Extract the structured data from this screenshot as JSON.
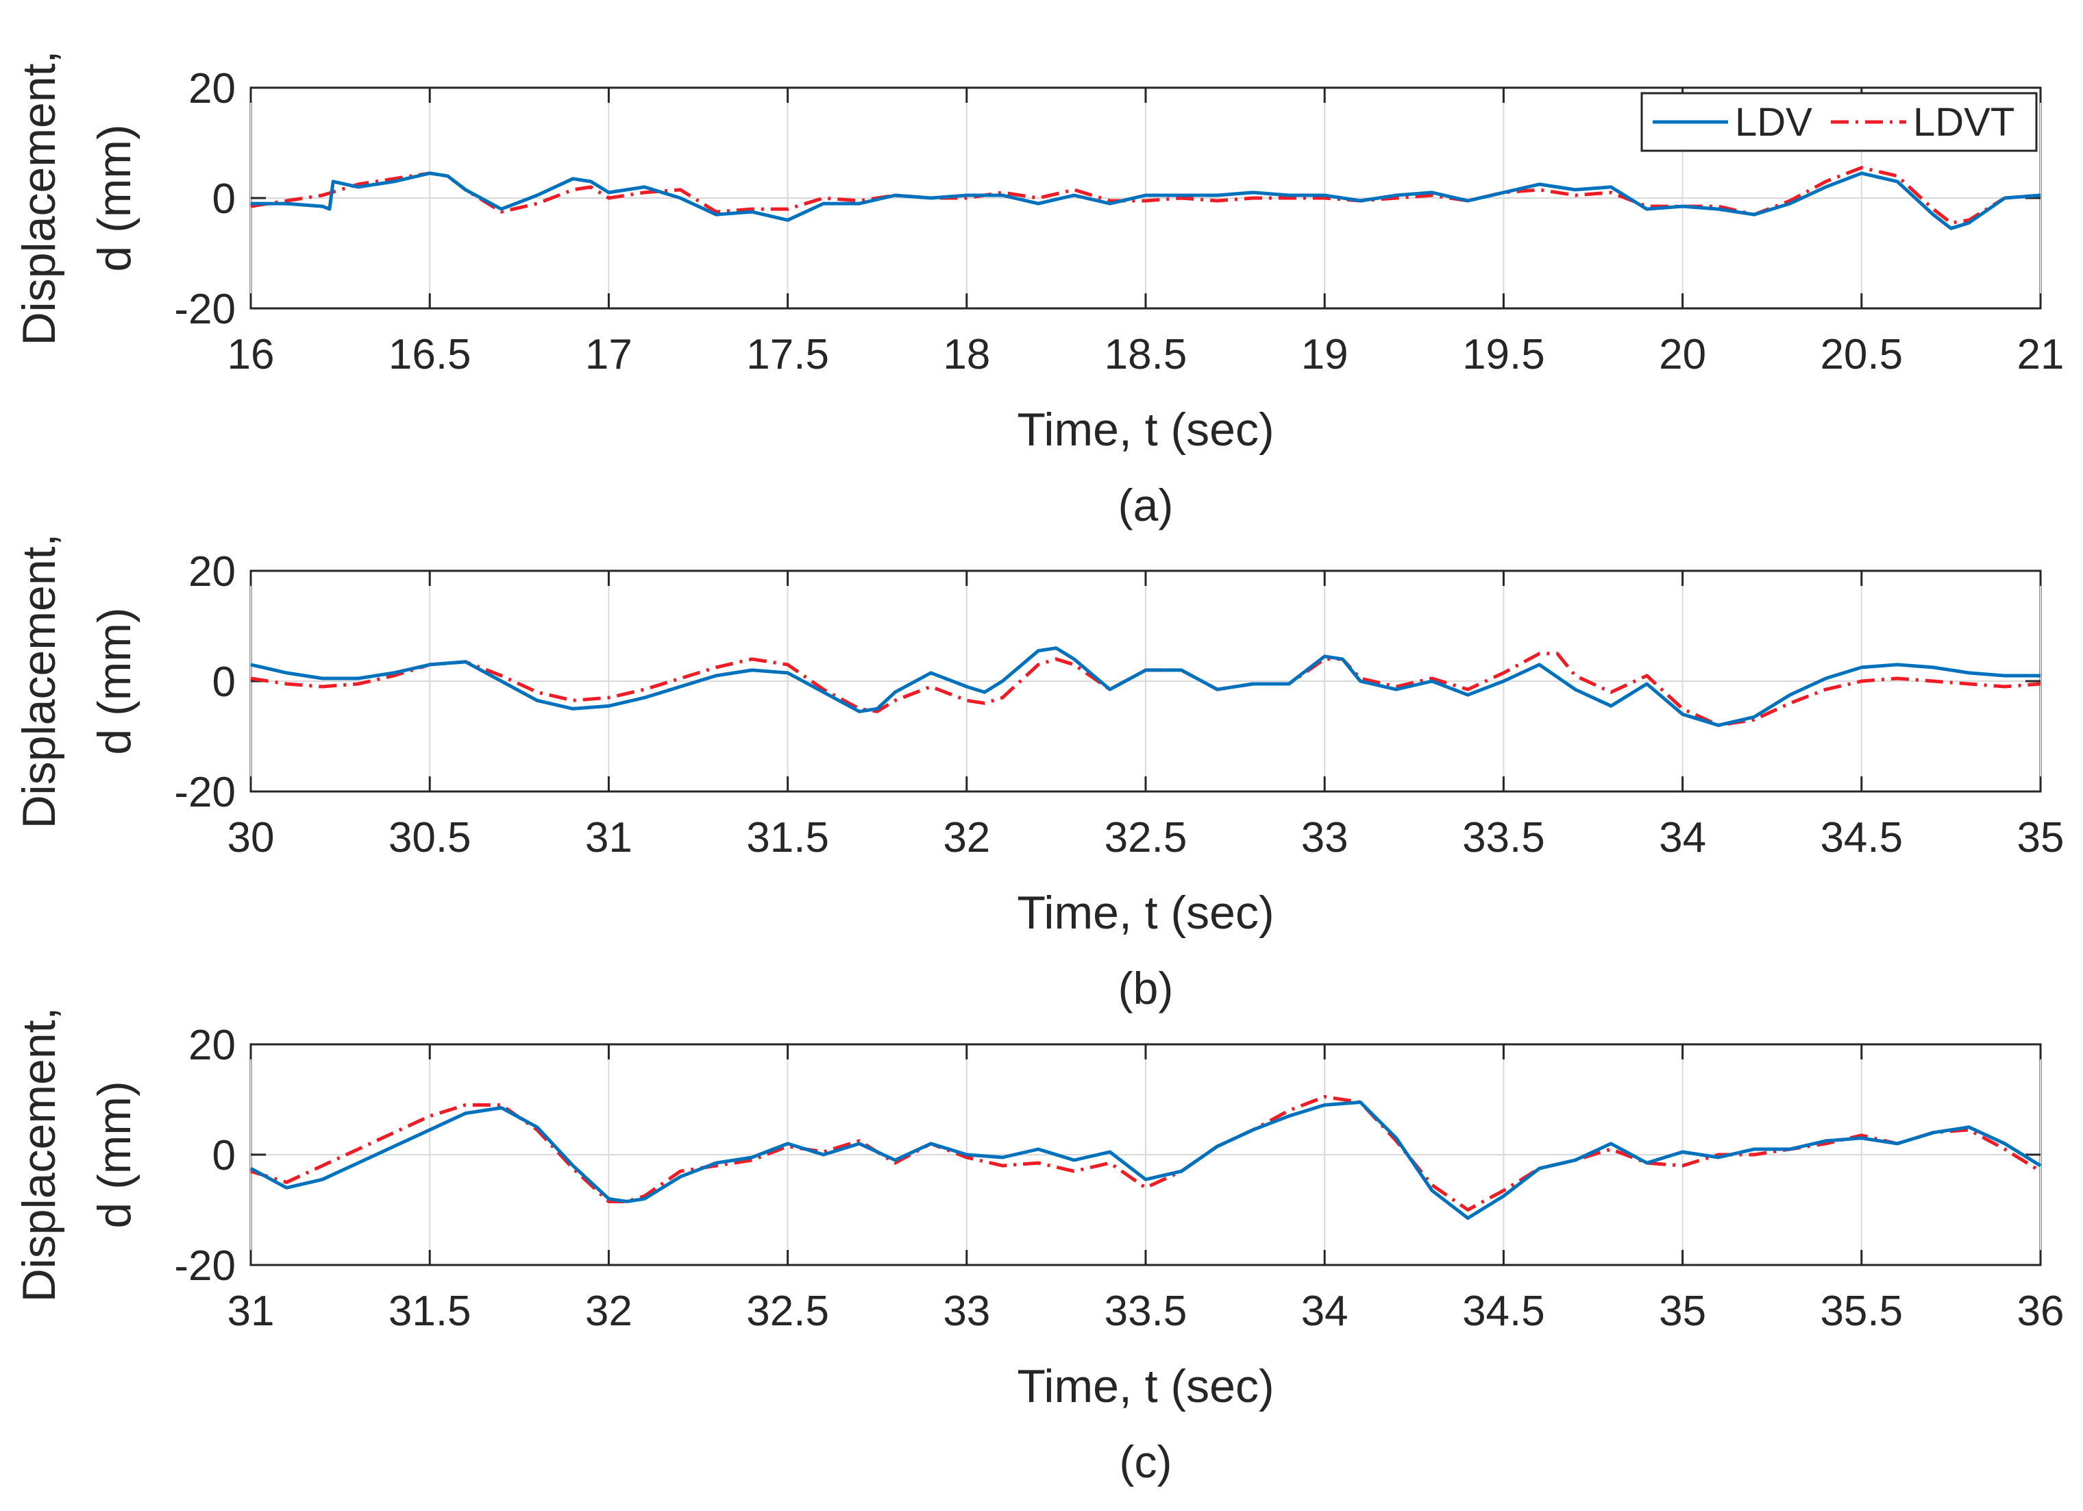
{
  "colors": {
    "ldv": "#0072BD",
    "ldvt": "#EE1C25",
    "axis": "#262626",
    "grid": "#D9D9D9"
  },
  "legend": {
    "ldv_label": "LDV",
    "ldvt_label": "LDVT",
    "placement": "top-right",
    "panel": 0
  },
  "chart_data": [
    {
      "type": "line",
      "caption": "(a)",
      "xlabel": "Time, t (sec)",
      "ylabel_line1": "Displacement,",
      "ylabel_line2": "d (mm)",
      "xlim": [
        16,
        21
      ],
      "ylim": [
        -20,
        20
      ],
      "xticks": [
        "16",
        "16.5",
        "17",
        "17.5",
        "18",
        "18.5",
        "19",
        "19.5",
        "20",
        "20.5",
        "21"
      ],
      "yticks": [
        "-20",
        "0",
        "20"
      ],
      "grid": true,
      "series": [
        {
          "name": "LDV",
          "x": [
            16,
            16.1,
            16.2,
            16.22,
            16.23,
            16.3,
            16.4,
            16.5,
            16.55,
            16.6,
            16.7,
            16.8,
            16.9,
            16.95,
            17.0,
            17.1,
            17.2,
            17.3,
            17.4,
            17.5,
            17.6,
            17.7,
            17.8,
            17.9,
            18.0,
            18.1,
            18.2,
            18.3,
            18.4,
            18.5,
            18.6,
            18.7,
            18.8,
            18.9,
            19.0,
            19.1,
            19.2,
            19.3,
            19.4,
            19.5,
            19.6,
            19.7,
            19.8,
            19.9,
            20.0,
            20.1,
            20.2,
            20.3,
            20.4,
            20.5,
            20.6,
            20.7,
            20.75,
            20.8,
            20.9,
            21.0
          ],
          "y": [
            -1,
            -1,
            -1.5,
            -2,
            3,
            2,
            3,
            4.5,
            4,
            1.5,
            -2,
            0.5,
            3.5,
            3,
            1,
            2,
            0,
            -3,
            -2.5,
            -4,
            -1,
            -1,
            0.5,
            0,
            0.5,
            0.5,
            -1,
            0.5,
            -1,
            0.5,
            0.5,
            0.5,
            1,
            0.5,
            0.5,
            -0.5,
            0.5,
            1,
            -0.5,
            1,
            2.5,
            1.5,
            2,
            -2,
            -1.5,
            -2,
            -3,
            -1,
            2,
            4.5,
            3,
            -3,
            -5.5,
            -4.5,
            0,
            0.5
          ]
        },
        {
          "name": "LDVT",
          "x": [
            16,
            16.1,
            16.2,
            16.3,
            16.4,
            16.5,
            16.55,
            16.6,
            16.7,
            16.8,
            16.9,
            16.95,
            17.0,
            17.1,
            17.2,
            17.3,
            17.4,
            17.5,
            17.6,
            17.7,
            17.8,
            17.9,
            18.0,
            18.1,
            18.2,
            18.3,
            18.4,
            18.5,
            18.6,
            18.7,
            18.8,
            18.9,
            19.0,
            19.1,
            19.2,
            19.3,
            19.4,
            19.5,
            19.6,
            19.7,
            19.8,
            19.9,
            20.0,
            20.1,
            20.2,
            20.3,
            20.4,
            20.5,
            20.6,
            20.7,
            20.75,
            20.8,
            20.9,
            21.0
          ],
          "y": [
            -1.5,
            -0.5,
            0.5,
            2.5,
            3.5,
            4.5,
            4,
            1.5,
            -2.5,
            -1,
            1.5,
            2,
            0,
            1,
            1.5,
            -2.5,
            -2,
            -2,
            0,
            -0.5,
            0.5,
            0,
            0,
            1,
            0,
            1.5,
            -0.5,
            -0.5,
            0,
            -0.5,
            0,
            0,
            0,
            -0.5,
            0,
            0.5,
            -0.5,
            1,
            1.5,
            0.5,
            1,
            -1.5,
            -1.5,
            -1.5,
            -3,
            -0.5,
            3,
            5.5,
            4,
            -2,
            -4.5,
            -4,
            0,
            0.5
          ]
        }
      ]
    },
    {
      "type": "line",
      "caption": "(b)",
      "xlabel": "Time, t (sec)",
      "ylabel_line1": "Displacement,",
      "ylabel_line2": "d (mm)",
      "xlim": [
        30,
        35
      ],
      "ylim": [
        -20,
        20
      ],
      "xticks": [
        "30",
        "30.5",
        "31",
        "31.5",
        "32",
        "32.5",
        "33",
        "33.5",
        "34",
        "34.5",
        "35"
      ],
      "yticks": [
        "-20",
        "0",
        "20"
      ],
      "grid": true,
      "series": [
        {
          "name": "LDV",
          "x": [
            30,
            30.1,
            30.2,
            30.3,
            30.4,
            30.5,
            30.6,
            30.7,
            30.8,
            30.9,
            31.0,
            31.1,
            31.2,
            31.3,
            31.4,
            31.5,
            31.6,
            31.7,
            31.75,
            31.8,
            31.9,
            32.0,
            32.05,
            32.1,
            32.2,
            32.25,
            32.3,
            32.4,
            32.5,
            32.6,
            32.7,
            32.8,
            32.9,
            33.0,
            33.05,
            33.1,
            33.2,
            33.3,
            33.4,
            33.5,
            33.6,
            33.7,
            33.8,
            33.9,
            34.0,
            34.1,
            34.2,
            34.3,
            34.4,
            34.5,
            34.6,
            34.7,
            34.8,
            34.9,
            35.0
          ],
          "y": [
            3,
            1.5,
            0.5,
            0.5,
            1.5,
            3,
            3.5,
            0,
            -3.5,
            -5,
            -4.5,
            -3,
            -1,
            1,
            2,
            1.5,
            -2,
            -5.5,
            -5,
            -2,
            1.5,
            -1,
            -2,
            0,
            5.5,
            6,
            4,
            -1.5,
            2,
            2,
            -1.5,
            -0.5,
            -0.5,
            4.5,
            4,
            0,
            -1.5,
            0,
            -2.5,
            0,
            3,
            -1.5,
            -4.5,
            -0.5,
            -6,
            -8,
            -6.5,
            -2.5,
            0.5,
            2.5,
            3,
            2.5,
            1.5,
            1,
            1
          ]
        },
        {
          "name": "LDVT",
          "x": [
            30,
            30.1,
            30.2,
            30.3,
            30.4,
            30.5,
            30.6,
            30.7,
            30.8,
            30.9,
            31.0,
            31.1,
            31.2,
            31.3,
            31.4,
            31.5,
            31.6,
            31.7,
            31.75,
            31.8,
            31.9,
            32.0,
            32.05,
            32.1,
            32.2,
            32.25,
            32.3,
            32.4,
            32.5,
            32.6,
            32.7,
            32.8,
            32.9,
            33.0,
            33.05,
            33.1,
            33.2,
            33.3,
            33.4,
            33.5,
            33.6,
            33.65,
            33.7,
            33.8,
            33.9,
            34.0,
            34.1,
            34.2,
            34.3,
            34.4,
            34.5,
            34.6,
            34.7,
            34.8,
            34.9,
            35.0
          ],
          "y": [
            0.5,
            -0.5,
            -1,
            -0.5,
            1,
            3,
            3.5,
            1,
            -2,
            -3.5,
            -3,
            -1.5,
            0.5,
            2.5,
            4,
            3,
            -1.5,
            -5,
            -5.5,
            -3.5,
            -1,
            -3.5,
            -4,
            -3,
            3,
            4,
            3,
            -1.5,
            2,
            2,
            -1.5,
            -0.5,
            -0.5,
            4,
            4,
            0.5,
            -1,
            0.5,
            -1.5,
            1.5,
            5,
            5,
            1,
            -2,
            1,
            -5,
            -8,
            -7,
            -4,
            -1.5,
            0,
            0.5,
            0,
            -0.5,
            -1,
            -0.5
          ]
        }
      ]
    },
    {
      "type": "line",
      "caption": "(c)",
      "xlabel": "Time, t (sec)",
      "ylabel_line1": "Displacement,",
      "ylabel_line2": "d (mm)",
      "xlim": [
        31,
        36
      ],
      "ylim": [
        -20,
        20
      ],
      "xticks": [
        "31",
        "31.5",
        "32",
        "32.5",
        "33",
        "33.5",
        "34",
        "34.5",
        "35",
        "35.5",
        "36"
      ],
      "yticks": [
        "-20",
        "0",
        "20"
      ],
      "grid": true,
      "series": [
        {
          "name": "LDV",
          "x": [
            31,
            31.1,
            31.2,
            31.3,
            31.4,
            31.5,
            31.6,
            31.7,
            31.8,
            31.9,
            32.0,
            32.05,
            32.1,
            32.2,
            32.3,
            32.4,
            32.5,
            32.6,
            32.7,
            32.8,
            32.9,
            33.0,
            33.1,
            33.2,
            33.3,
            33.4,
            33.5,
            33.6,
            33.7,
            33.8,
            33.9,
            34.0,
            34.1,
            34.2,
            34.3,
            34.4,
            34.5,
            34.6,
            34.7,
            34.8,
            34.9,
            35.0,
            35.1,
            35.2,
            35.3,
            35.4,
            35.5,
            35.6,
            35.7,
            35.8,
            35.9,
            36.0
          ],
          "y": [
            -2.5,
            -6,
            -4.5,
            -1.5,
            1.5,
            4.5,
            7.5,
            8.5,
            5,
            -2,
            -8,
            -8.5,
            -8,
            -4,
            -1.5,
            -0.5,
            2,
            0,
            2,
            -1,
            2,
            0,
            -0.5,
            1,
            -1,
            0.5,
            -4.5,
            -3,
            1.5,
            4.5,
            7,
            9,
            9.5,
            3,
            -6.5,
            -11.5,
            -7.5,
            -2.5,
            -1,
            2,
            -1.5,
            0.5,
            -0.5,
            1,
            1,
            2.5,
            3,
            2,
            4,
            5,
            2,
            -2
          ]
        },
        {
          "name": "LDVT",
          "x": [
            31,
            31.1,
            31.2,
            31.3,
            31.4,
            31.5,
            31.6,
            31.7,
            31.8,
            31.9,
            32.0,
            32.05,
            32.1,
            32.2,
            32.3,
            32.4,
            32.5,
            32.6,
            32.7,
            32.8,
            32.9,
            33.0,
            33.1,
            33.2,
            33.3,
            33.4,
            33.5,
            33.6,
            33.7,
            33.8,
            33.9,
            34.0,
            34.1,
            34.2,
            34.3,
            34.4,
            34.5,
            34.6,
            34.7,
            34.8,
            34.9,
            35.0,
            35.1,
            35.2,
            35.3,
            35.4,
            35.5,
            35.6,
            35.7,
            35.8,
            35.9,
            36.0
          ],
          "y": [
            -3,
            -5,
            -2,
            1,
            4,
            7,
            9,
            9,
            4.5,
            -2.5,
            -8.5,
            -8.5,
            -7.5,
            -3,
            -2,
            -1,
            1.5,
            0.5,
            2.5,
            -1.5,
            2,
            -0.5,
            -2,
            -1.5,
            -3,
            -1.5,
            -6,
            -3,
            1.5,
            4.5,
            8,
            10.5,
            9.5,
            2.5,
            -5.5,
            -10,
            -6.5,
            -2.5,
            -1,
            1,
            -1.5,
            -2,
            0,
            0,
            1,
            2,
            3.5,
            2,
            4,
            4.5,
            1,
            -3
          ]
        }
      ]
    }
  ]
}
